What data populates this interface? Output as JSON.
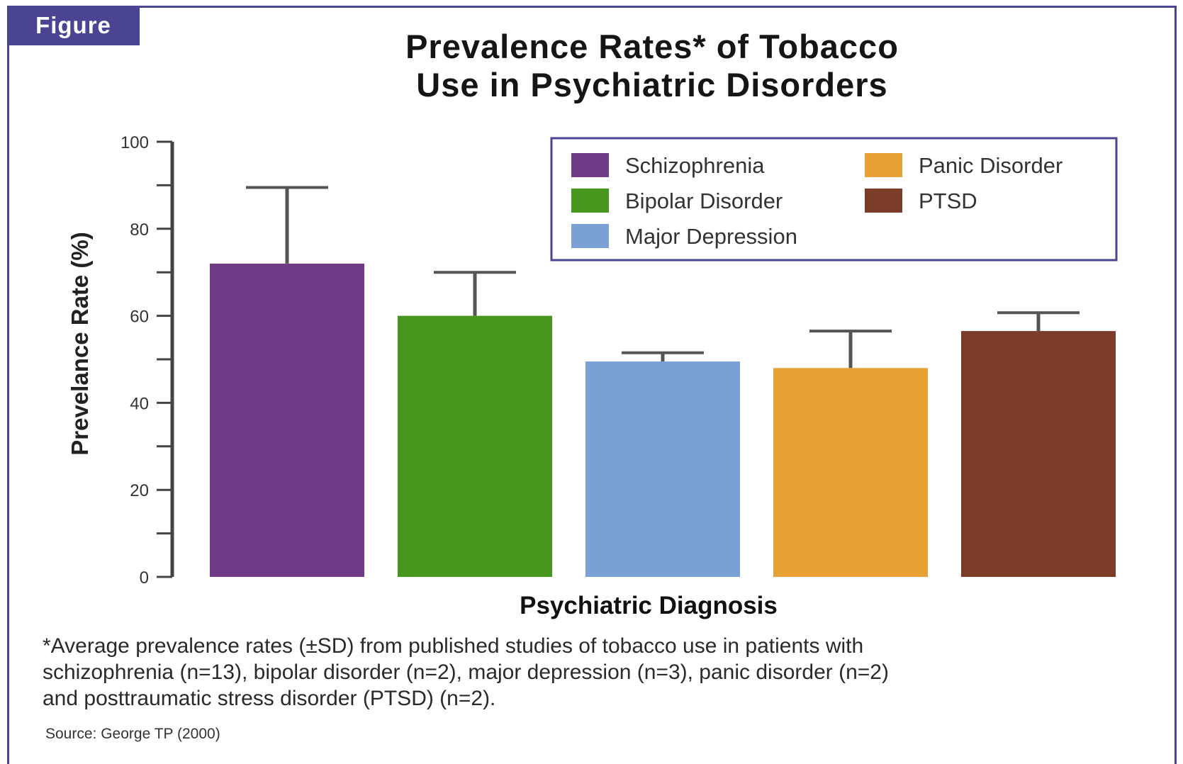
{
  "figure_label": "Figure",
  "title_line1": "Prevalence Rates* of Tobacco",
  "title_line2": "Use in Psychiatric Disorders",
  "footnote_lines": [
    "*Average prevalence rates (±SD) from published studies of tobacco use in patients with",
    "schizophrenia (n=13), bipolar disorder (n=2), major depression (n=3), panic disorder (n=2)",
    "and posttraumatic stress disorder (PTSD) (n=2)."
  ],
  "source": "Source: George TP (2000)",
  "colors": {
    "frame": "#4b4493",
    "axis": "#444444",
    "errorbar": "#555555"
  },
  "chart_data": {
    "type": "bar",
    "xlabel": "Psychiatric Diagnosis",
    "ylabel": "Prevelance Rate (%)",
    "ylim": [
      0,
      100
    ],
    "yticks": [
      0,
      20,
      40,
      60,
      80,
      100
    ],
    "grid": false,
    "legend_position": "top-right",
    "categories": [
      "Schizophrenia",
      "Bipolar Disorder",
      "Major Depression",
      "Panic Disorder",
      "PTSD"
    ],
    "values": [
      72,
      60,
      49.5,
      48,
      56.5
    ],
    "sd": [
      17.5,
      10,
      2,
      8.5,
      4.2
    ],
    "colors": [
      "#6f3a86",
      "#47971f",
      "#7aa0d4",
      "#e8a135",
      "#7b3c2a"
    ],
    "legend_layout": [
      [
        "Schizophrenia",
        "Panic Disorder"
      ],
      [
        "Bipolar Disorder",
        "PTSD"
      ],
      [
        "Major Depression"
      ]
    ]
  }
}
